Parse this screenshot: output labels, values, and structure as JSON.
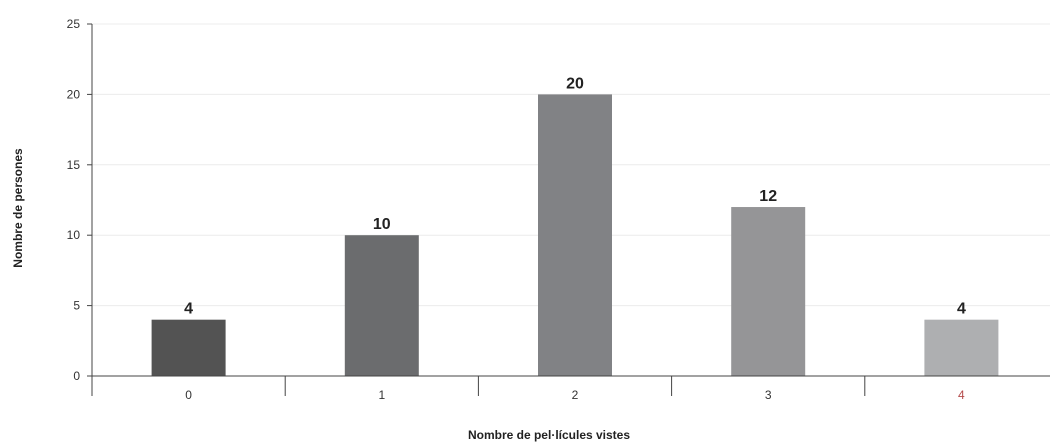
{
  "chart_data": {
    "type": "bar",
    "categories": [
      "0",
      "1",
      "2",
      "3",
      "4"
    ],
    "values": [
      4,
      10,
      20,
      12,
      4
    ],
    "data_labels": [
      "4",
      "10",
      "20",
      "12",
      "4"
    ],
    "xlabel": "Nombre de pel·lícules vistes",
    "ylabel": "Nombre de persones",
    "ylim": [
      0,
      25
    ],
    "yticks": [
      0,
      5,
      10,
      15,
      20,
      25
    ],
    "grid": true,
    "legend": "none",
    "colors": [
      "#535353",
      "#6b6c6e",
      "#818285",
      "#959597",
      "#aeafb1"
    ],
    "tick_label_colors": [
      "#333333",
      "#333333",
      "#333333",
      "#333333",
      "#b44a4a"
    ],
    "grid_color": "#ececec",
    "axis_color": "#444444"
  }
}
